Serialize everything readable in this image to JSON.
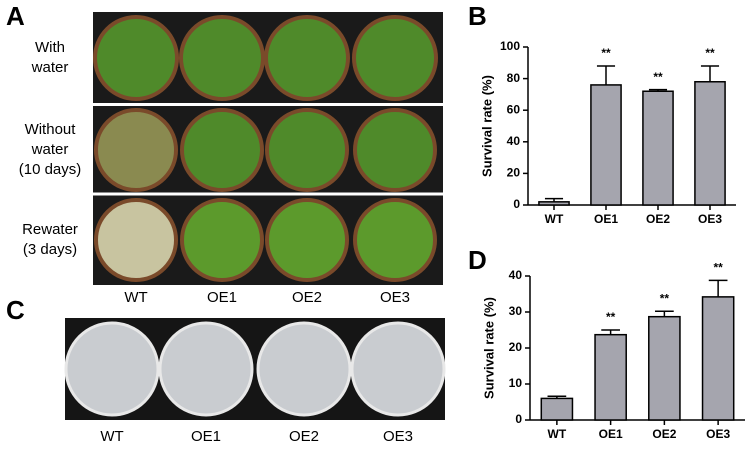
{
  "panels": {
    "A": {
      "label": "A",
      "rows": [
        [
          "With",
          "water"
        ],
        [
          "Without",
          "water",
          "(10 days)"
        ],
        [
          "Rewater",
          "(3 days)"
        ]
      ],
      "columns": [
        "WT",
        "OE1",
        "OE2",
        "OE3"
      ]
    },
    "C": {
      "label": "C",
      "columns": [
        "WT",
        "OE1",
        "OE2",
        "OE3"
      ]
    }
  },
  "chart_data": [
    {
      "type": "bar",
      "label": "B",
      "y_label": "Survival rate (%)",
      "categories": [
        "WT",
        "OE1",
        "OE2",
        "OE3"
      ],
      "values": [
        2,
        76,
        72,
        78
      ],
      "errors": [
        2,
        12,
        1,
        10
      ],
      "annotations": [
        null,
        "**",
        "**",
        "**"
      ],
      "color": "#a5a5ae",
      "ylim": [
        0,
        100
      ],
      "yticks": [
        0,
        20,
        40,
        60,
        80,
        100
      ]
    },
    {
      "type": "bar",
      "label": "D",
      "y_label": "Survival rate (%)",
      "categories": [
        "WT",
        "OE1",
        "OE2",
        "OE3"
      ],
      "values": [
        6,
        23.7,
        28.7,
        34.2
      ],
      "errors": [
        0.6,
        1.3,
        1.5,
        4.6
      ],
      "annotations": [
        null,
        "**",
        "**",
        "**"
      ],
      "color": "#a5a5ae",
      "ylim": [
        0,
        40
      ],
      "yticks": [
        0,
        10,
        20,
        30,
        40
      ]
    }
  ]
}
